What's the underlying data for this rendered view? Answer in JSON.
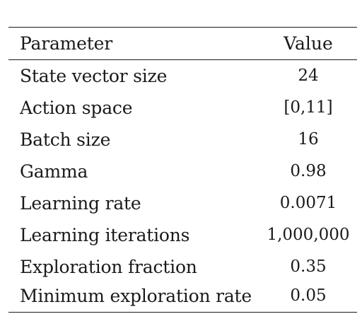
{
  "table": {
    "headers": {
      "parameter": "Parameter",
      "value": "Value"
    },
    "rows": [
      {
        "parameter": "State vector size",
        "value": "24"
      },
      {
        "parameter": "Action space",
        "value": "[0,11]"
      },
      {
        "parameter": "Batch size",
        "value": "16"
      },
      {
        "parameter": "Gamma",
        "value": "0.98"
      },
      {
        "parameter": "Learning rate",
        "value": "0.0071"
      },
      {
        "parameter": "Learning iterations",
        "value": "1,000,000"
      },
      {
        "parameter": "Exploration fraction",
        "value": "0.35"
      },
      {
        "parameter": "Minimum exploration rate",
        "value": "0.05"
      }
    ]
  }
}
